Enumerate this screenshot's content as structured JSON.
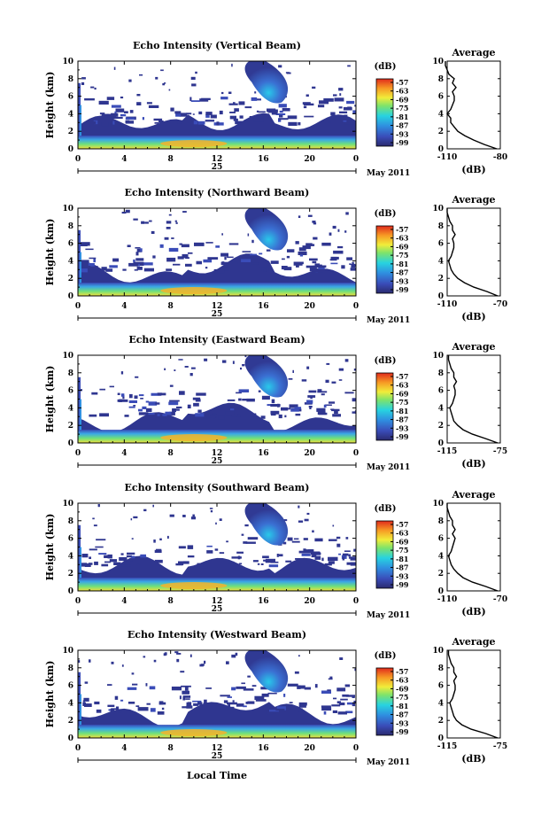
{
  "figure": {
    "xlabel_bottom": "Local Time",
    "colorbar_unit": "(dB)",
    "avg_title": "Average",
    "avg_xlabel": "(dB)",
    "date_day": "25",
    "date_label": "May 2011"
  },
  "chart_data": [
    {
      "type": "heatmap",
      "title": "Echo Intensity (Vertical Beam)",
      "ylabel": "Height (km)",
      "xticks": [
        "0",
        "4",
        "8",
        "12",
        "16",
        "20",
        "0"
      ],
      "yticks": [
        "0",
        "2",
        "4",
        "6",
        "8",
        "10"
      ],
      "xlim": [
        0,
        24
      ],
      "ylim": [
        0,
        10
      ],
      "colorbar_ticks": [
        "-57",
        "-63",
        "-69",
        "-75",
        "-81",
        "-87",
        "-93",
        "-99"
      ],
      "average_profile": {
        "xlim": [
          -110,
          -80
        ],
        "xticks": [
          "-110",
          "-80"
        ],
        "yticks": [
          "0",
          "2",
          "4",
          "6",
          "8",
          "10"
        ],
        "height_km": [
          0,
          0.5,
          1,
          1.5,
          2,
          2.5,
          3,
          3.5,
          4,
          4.5,
          5,
          5.5,
          6,
          6.5,
          7,
          7.5,
          8,
          8.5,
          9,
          9.5,
          10
        ],
        "db": [
          -82,
          -89,
          -95,
          -100,
          -104,
          -106,
          -108,
          -108,
          -110,
          -108,
          -107,
          -106,
          -106,
          -107,
          -105,
          -107,
          -106,
          -109,
          -110,
          -111,
          -111
        ]
      }
    },
    {
      "type": "heatmap",
      "title": "Echo Intensity (Northward Beam)",
      "ylabel": "Height (km)",
      "xticks": [
        "0",
        "4",
        "8",
        "12",
        "16",
        "20",
        "0"
      ],
      "yticks": [
        "0",
        "2",
        "4",
        "6",
        "8",
        "10"
      ],
      "xlim": [
        0,
        24
      ],
      "ylim": [
        0,
        10
      ],
      "colorbar_ticks": [
        "-57",
        "-63",
        "-69",
        "-75",
        "-81",
        "-87",
        "-93",
        "-99"
      ],
      "average_profile": {
        "xlim": [
          -110,
          -70
        ],
        "xticks": [
          "-110",
          "-70"
        ],
        "yticks": [
          "0",
          "2",
          "4",
          "6",
          "8",
          "10"
        ],
        "height_km": [
          0,
          0.5,
          1,
          1.5,
          2,
          2.5,
          3,
          3.5,
          4,
          4.5,
          5,
          5.5,
          6,
          6.5,
          7,
          7.5,
          8,
          8.5,
          9,
          9.5,
          10
        ],
        "db": [
          -72,
          -80,
          -90,
          -97,
          -102,
          -105,
          -107,
          -108,
          -109,
          -107,
          -106,
          -105,
          -105,
          -106,
          -104,
          -106,
          -106,
          -108,
          -109,
          -110,
          -110
        ]
      }
    },
    {
      "type": "heatmap",
      "title": "Echo Intensity (Eastward Beam)",
      "ylabel": "Height (km)",
      "xticks": [
        "0",
        "4",
        "8",
        "12",
        "16",
        "20",
        "0"
      ],
      "yticks": [
        "0",
        "2",
        "4",
        "6",
        "8",
        "10"
      ],
      "xlim": [
        0,
        24
      ],
      "ylim": [
        0,
        10
      ],
      "colorbar_ticks": [
        "-57",
        "-63",
        "-69",
        "-75",
        "-81",
        "-87",
        "-93",
        "-99"
      ],
      "average_profile": {
        "xlim": [
          -115,
          -75
        ],
        "xticks": [
          "-115",
          "-75"
        ],
        "yticks": [
          "0",
          "2",
          "4",
          "6",
          "8",
          "10"
        ],
        "height_km": [
          0,
          0.5,
          1,
          1.5,
          2,
          2.5,
          3,
          3.5,
          4,
          4.5,
          5,
          5.5,
          6,
          6.5,
          7,
          7.5,
          8,
          8.5,
          9,
          9.5,
          10
        ],
        "db": [
          -77,
          -86,
          -96,
          -103,
          -107,
          -110,
          -111,
          -112,
          -113,
          -111,
          -110,
          -109,
          -109,
          -110,
          -108,
          -110,
          -110,
          -112,
          -113,
          -114,
          -114
        ]
      }
    },
    {
      "type": "heatmap",
      "title": "Echo Intensity (Southward Beam)",
      "ylabel": "Height (km)",
      "xticks": [
        "0",
        "4",
        "8",
        "12",
        "16",
        "20",
        "0"
      ],
      "yticks": [
        "0",
        "2",
        "4",
        "6",
        "8",
        "10"
      ],
      "xlim": [
        0,
        24
      ],
      "ylim": [
        0,
        10
      ],
      "colorbar_ticks": [
        "-57",
        "-63",
        "-69",
        "-75",
        "-81",
        "-87",
        "-93",
        "-99"
      ],
      "average_profile": {
        "xlim": [
          -110,
          -70
        ],
        "xticks": [
          "-110",
          "-70"
        ],
        "yticks": [
          "0",
          "2",
          "4",
          "6",
          "8",
          "10"
        ],
        "height_km": [
          0,
          0.5,
          1,
          1.5,
          2,
          2.5,
          3,
          3.5,
          4,
          4.5,
          5,
          5.5,
          6,
          6.5,
          7,
          7.5,
          8,
          8.5,
          9,
          9.5,
          10
        ],
        "db": [
          -72,
          -81,
          -91,
          -98,
          -102,
          -105,
          -107,
          -108,
          -109,
          -107,
          -106,
          -105,
          -104,
          -106,
          -104,
          -106,
          -106,
          -108,
          -109,
          -110,
          -110
        ]
      }
    },
    {
      "type": "heatmap",
      "title": "Echo Intensity (Westward Beam)",
      "ylabel": "Height (km)",
      "xticks": [
        "0",
        "4",
        "8",
        "12",
        "16",
        "20",
        "0"
      ],
      "yticks": [
        "0",
        "2",
        "4",
        "6",
        "8",
        "10"
      ],
      "xlim": [
        0,
        24
      ],
      "ylim": [
        0,
        10
      ],
      "colorbar_ticks": [
        "-57",
        "-63",
        "-69",
        "-75",
        "-81",
        "-87",
        "-93",
        "-99"
      ],
      "average_profile": {
        "xlim": [
          -115,
          -75
        ],
        "xticks": [
          "-115",
          "-75"
        ],
        "yticks": [
          "0",
          "2",
          "4",
          "6",
          "8",
          "10"
        ],
        "height_km": [
          0,
          0.5,
          1,
          1.5,
          2,
          2.5,
          3,
          3.5,
          4,
          4.5,
          5,
          5.5,
          6,
          6.5,
          7,
          7.5,
          8,
          8.5,
          9,
          9.5,
          10
        ],
        "db": [
          -77,
          -86,
          -97,
          -104,
          -108,
          -110,
          -111,
          -112,
          -113,
          -111,
          -110,
          -109,
          -109,
          -110,
          -108,
          -110,
          -110,
          -112,
          -113,
          -114,
          -114
        ]
      }
    }
  ]
}
